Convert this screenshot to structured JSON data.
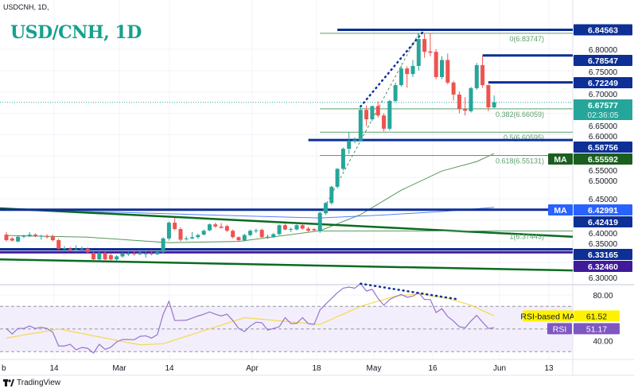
{
  "header": {
    "symbol": "USDCNH, 1D,",
    "title": "USD/CNH, 1D"
  },
  "footer": {
    "brand": "TradingView"
  },
  "colors": {
    "up": "#26a69a",
    "down": "#ef5350",
    "level": "#0d2f96",
    "level_purple": "#3f1a9a",
    "trend": "#0a6b1f",
    "fib": "#5c9e6a",
    "ma50": "#2e7d32",
    "ma200": "#2962ff",
    "rsi": "#9575cd",
    "rsi_ma": "#f5d94e",
    "divergence": "#0d2f96",
    "title": "#17a08e"
  },
  "chart_data": [
    {
      "type": "candlestick",
      "title": "USD/CNH, 1D",
      "x_tick_labels": [
        "b",
        "14",
        "Mar",
        "14",
        "Apr",
        "18",
        "May",
        "16",
        "Jun",
        "13"
      ],
      "y_tick_labels": [
        "6.80000",
        "6.75000",
        "6.70000",
        "6.65000",
        "6.60000",
        "6.55000",
        "6.50000",
        "6.45000",
        "6.40000",
        "6.35000",
        "6.30000"
      ],
      "ylim": [
        6.28,
        6.87
      ],
      "grid": true,
      "ohlc": [
        [
          6.366,
          6.372,
          6.35,
          6.353
        ],
        [
          6.357,
          6.36,
          6.35,
          6.352
        ],
        [
          6.35,
          6.363,
          6.348,
          6.361
        ],
        [
          6.361,
          6.366,
          6.358,
          6.364
        ],
        [
          6.362,
          6.372,
          6.36,
          6.366
        ],
        [
          6.366,
          6.369,
          6.36,
          6.362
        ],
        [
          6.362,
          6.366,
          6.354,
          6.363
        ],
        [
          6.362,
          6.367,
          6.357,
          6.36
        ],
        [
          6.362,
          6.366,
          6.35,
          6.353
        ],
        [
          6.353,
          6.356,
          6.331,
          6.333
        ],
        [
          6.333,
          6.339,
          6.328,
          6.334
        ],
        [
          6.333,
          6.337,
          6.327,
          6.33
        ],
        [
          6.33,
          6.341,
          6.325,
          6.331
        ],
        [
          6.331,
          6.338,
          6.327,
          6.333
        ],
        [
          6.333,
          6.336,
          6.322,
          6.325
        ],
        [
          6.323,
          6.326,
          6.305,
          6.308
        ],
        [
          6.308,
          6.326,
          6.305,
          6.323
        ],
        [
          6.323,
          6.326,
          6.304,
          6.308
        ],
        [
          6.318,
          6.321,
          6.305,
          6.308
        ],
        [
          6.308,
          6.318,
          6.305,
          6.315
        ],
        [
          6.315,
          6.325,
          6.312,
          6.322
        ],
        [
          6.32,
          6.326,
          6.316,
          6.322
        ],
        [
          6.323,
          6.327,
          6.317,
          6.32
        ],
        [
          6.32,
          6.327,
          6.318,
          6.324
        ],
        [
          6.322,
          6.326,
          6.312,
          6.322
        ],
        [
          6.323,
          6.326,
          6.318,
          6.32
        ],
        [
          6.32,
          6.328,
          6.318,
          6.325
        ],
        [
          6.325,
          6.36,
          6.322,
          6.357
        ],
        [
          6.357,
          6.397,
          6.352,
          6.394
        ],
        [
          6.394,
          6.405,
          6.376,
          6.379
        ],
        [
          6.379,
          6.383,
          6.35,
          6.354
        ],
        [
          6.356,
          6.362,
          6.352,
          6.357
        ],
        [
          6.357,
          6.372,
          6.355,
          6.36
        ],
        [
          6.36,
          6.368,
          6.356,
          6.365
        ],
        [
          6.366,
          6.378,
          6.364,
          6.375
        ],
        [
          6.376,
          6.392,
          6.374,
          6.39
        ],
        [
          6.39,
          6.394,
          6.382,
          6.385
        ],
        [
          6.385,
          6.393,
          6.38,
          6.382
        ],
        [
          6.386,
          6.389,
          6.372,
          6.375
        ],
        [
          6.375,
          6.378,
          6.357,
          6.36
        ],
        [
          6.36,
          6.362,
          6.35,
          6.353
        ],
        [
          6.353,
          6.368,
          6.35,
          6.365
        ],
        [
          6.365,
          6.378,
          6.362,
          6.375
        ],
        [
          6.374,
          6.38,
          6.37,
          6.376
        ],
        [
          6.377,
          6.38,
          6.358,
          6.36
        ],
        [
          6.359,
          6.366,
          6.356,
          6.361
        ],
        [
          6.36,
          6.37,
          6.358,
          6.367
        ],
        [
          6.367,
          6.39,
          6.365,
          6.388
        ],
        [
          6.388,
          6.392,
          6.376,
          6.378
        ],
        [
          6.378,
          6.383,
          6.372,
          6.379
        ],
        [
          6.378,
          6.39,
          6.376,
          6.388
        ],
        [
          6.388,
          6.391,
          6.378,
          6.38
        ],
        [
          6.38,
          6.384,
          6.372,
          6.375
        ],
        [
          6.379,
          6.381,
          6.373,
          6.376
        ],
        [
          6.375,
          6.42,
          6.37,
          6.417
        ],
        [
          6.416,
          6.442,
          6.412,
          6.44
        ],
        [
          6.44,
          6.48,
          6.436,
          6.478
        ],
        [
          6.478,
          6.522,
          6.474,
          6.52
        ],
        [
          6.52,
          6.57,
          6.516,
          6.567
        ],
        [
          6.567,
          6.605,
          6.555,
          6.584
        ],
        [
          6.586,
          6.594,
          6.58,
          6.588
        ],
        [
          6.586,
          6.666,
          6.584,
          6.658
        ],
        [
          6.658,
          6.668,
          6.62,
          6.636
        ],
        [
          6.636,
          6.668,
          6.632,
          6.667
        ],
        [
          6.667,
          6.678,
          6.64,
          6.645
        ],
        [
          6.645,
          6.65,
          6.608,
          6.614
        ],
        [
          6.614,
          6.682,
          6.61,
          6.679
        ],
        [
          6.679,
          6.722,
          6.676,
          6.716
        ],
        [
          6.716,
          6.762,
          6.712,
          6.755
        ],
        [
          6.755,
          6.76,
          6.71,
          6.742
        ],
        [
          6.742,
          6.775,
          6.735,
          6.761
        ],
        [
          6.761,
          6.838,
          6.75,
          6.824
        ],
        [
          6.824,
          6.836,
          6.78,
          6.794
        ],
        [
          6.795,
          6.838,
          6.784,
          6.792
        ],
        [
          6.794,
          6.8,
          6.73,
          6.735
        ],
        [
          6.735,
          6.784,
          6.73,
          6.775
        ],
        [
          6.775,
          6.79,
          6.718,
          6.722
        ],
        [
          6.722,
          6.726,
          6.68,
          6.694
        ],
        [
          6.694,
          6.701,
          6.65,
          6.66
        ],
        [
          6.66,
          6.688,
          6.645,
          6.656
        ],
        [
          6.655,
          6.712,
          6.652,
          6.709
        ],
        [
          6.709,
          6.768,
          6.705,
          6.763
        ],
        [
          6.763,
          6.785,
          6.71,
          6.716
        ],
        [
          6.716,
          6.718,
          6.655,
          6.664
        ],
        [
          6.664,
          6.692,
          6.662,
          6.676
        ]
      ],
      "current_price": {
        "value": "6.67577",
        "countdown": "02:36:05"
      },
      "horizontal_levels": [
        {
          "label": "6.84563",
          "value": 6.84563,
          "from_bar": 57,
          "color": "level"
        },
        {
          "label": "6.78547",
          "value": 6.78547,
          "from_bar": 82,
          "color": "level"
        },
        {
          "label": "6.72249",
          "value": 6.72249,
          "from_bar": 83,
          "color": "level"
        },
        {
          "label": "6.58756",
          "value": 6.58756,
          "from_bar": 52,
          "color": "level"
        },
        {
          "label": "6.42419",
          "value": 6.42419,
          "from_bar": 0,
          "color": "level"
        },
        {
          "label": "6.33165",
          "value": 6.33165,
          "from_bar": 0,
          "color": "level"
        },
        {
          "label": "6.32460",
          "value": 6.3246,
          "from_bar": 0,
          "color": "level_purple"
        }
      ],
      "fibonacci": [
        {
          "label": "0(6.83747)",
          "value": 6.83747
        },
        {
          "label": "0.382(6.66059)",
          "value": 6.66059
        },
        {
          "label": "0.5(6.60595)",
          "value": 6.60595
        },
        {
          "label": "0.618(6.55131)",
          "value": 6.55131
        },
        {
          "label": "1(6.37443)",
          "value": 6.37443
        }
      ],
      "trendlines": [
        {
          "start": 6.4276,
          "end": 6.361
        },
        {
          "start": 6.308,
          "end": 6.282
        }
      ],
      "fib_anchor_line": {
        "from": [
          54,
          6.41
        ],
        "to": [
          71,
          6.837
        ]
      },
      "price_divergence_line": {
        "from": [
          61,
          6.666
        ],
        "to": [
          72,
          6.845
        ]
      },
      "moving_averages": [
        {
          "name": "MA",
          "last": "6.55592",
          "color": "ma50",
          "points": [
            [
              0,
              6.364
            ],
            [
              14,
              6.36
            ],
            [
              28,
              6.347
            ],
            [
              40,
              6.35
            ],
            [
              54,
              6.375
            ],
            [
              61,
              6.413
            ],
            [
              68,
              6.47
            ],
            [
              75,
              6.515
            ],
            [
              81,
              6.537
            ],
            [
              84,
              6.556
            ]
          ]
        },
        {
          "name": "MA",
          "last": "6.42991",
          "color": "ma200",
          "points": [
            [
              0,
              6.424
            ],
            [
              20,
              6.418
            ],
            [
              40,
              6.41
            ],
            [
              54,
              6.405
            ],
            [
              65,
              6.412
            ],
            [
              75,
              6.42
            ],
            [
              84,
              6.43
            ]
          ]
        }
      ]
    },
    {
      "type": "line",
      "title": "RSI",
      "y_tick_labels": [
        "80.00",
        "40.00"
      ],
      "ylim": [
        26,
        98
      ],
      "bands": [
        70,
        50,
        30
      ],
      "series": [
        {
          "name": "RSI",
          "last": "51.17",
          "values": [
            50.5,
            45.6,
            50.5,
            50.5,
            52.6,
            50.5,
            51.5,
            50.5,
            47,
            35,
            35,
            36.5,
            31.6,
            33.7,
            33,
            28.8,
            36.5,
            32,
            34,
            38.6,
            40.7,
            40.7,
            40.5,
            43.5,
            44,
            42,
            45,
            63,
            74.4,
            57.5,
            57.5,
            57.8,
            59.6,
            61.5,
            63,
            65,
            63,
            61.5,
            63,
            57.5,
            50.5,
            47.7,
            52.6,
            56,
            55.5,
            49,
            50.5,
            52,
            60,
            54.7,
            55,
            60,
            54.7,
            54,
            66.7,
            72,
            77,
            82,
            86,
            87,
            86,
            90,
            83.5,
            85,
            77,
            71,
            76,
            78.5,
            80.5,
            78,
            79,
            82,
            76,
            76,
            64.5,
            68,
            61,
            57,
            52,
            51,
            57,
            62,
            56,
            50.5,
            51.17
          ]
        },
        {
          "name": "RSI-based MA",
          "last": "61.52",
          "values": [
            42,
            42.9,
            43.8,
            44.7,
            45.6,
            46.4,
            47.3,
            48.2,
            49.1,
            50,
            49,
            48,
            47,
            46,
            45,
            44,
            43,
            42,
            41,
            40,
            39,
            38,
            37,
            36,
            36.2,
            36.5,
            36.8,
            37,
            38.6,
            40.3,
            41.9,
            43.6,
            45.2,
            46.9,
            48.5,
            50.1,
            51.8,
            53.4,
            55.1,
            56.7,
            58.4,
            60,
            59.5,
            59.1,
            58.6,
            58.2,
            57.7,
            57.2,
            56.8,
            56.3,
            55.8,
            55.4,
            54.9,
            54.5,
            54,
            56.3,
            58.6,
            60.9,
            63.1,
            65.4,
            67.7,
            70,
            71.5,
            73,
            74.5,
            76,
            77.5,
            79,
            79.5,
            80,
            80.5,
            81,
            80.2,
            79.4,
            78.6,
            77.8,
            77,
            75.5,
            74,
            72.5,
            71,
            68.6,
            66.2,
            63.9,
            61.52
          ]
        }
      ],
      "divergence_line": {
        "from": [
          61,
          90
        ],
        "to": [
          78,
          76
        ]
      }
    }
  ]
}
